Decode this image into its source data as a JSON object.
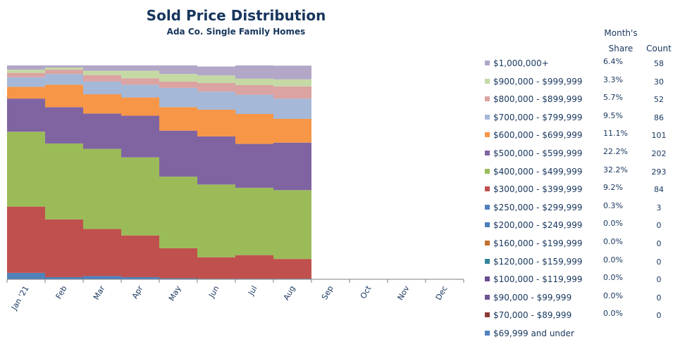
{
  "chart_data": {
    "type": "area",
    "stacked": "percent",
    "step": true,
    "title": "Sold Price Distribution",
    "subtitle": "Ada Co. Single Family Homes",
    "categories": [
      "Jan '21",
      "Feb",
      "Mar",
      "Apr",
      "May",
      "Jun",
      "Jul",
      "Aug",
      "Sep",
      "Oct",
      "Nov",
      "Dec"
    ],
    "ylim": [
      0,
      100
    ],
    "legend_position": "right",
    "series": [
      {
        "name": "$69,999  and under",
        "color": "#4f81bd",
        "values": [
          0,
          0,
          0,
          0,
          0,
          0,
          0,
          0,
          null,
          null,
          null,
          null
        ]
      },
      {
        "name": "$70,000 - $89,999",
        "color": "#8e3b37",
        "values": [
          0,
          0,
          0,
          0,
          0,
          0,
          0,
          0,
          null,
          null,
          null,
          null
        ]
      },
      {
        "name": "$90,000 - $99,999",
        "color": "#6f5395",
        "values": [
          0,
          0,
          0,
          0,
          0,
          0,
          0,
          0,
          null,
          null,
          null,
          null
        ]
      },
      {
        "name": "$100,000 - $119,999",
        "color": "#6a4c93",
        "values": [
          0,
          0,
          0,
          0,
          0,
          0,
          0,
          0,
          null,
          null,
          null,
          null
        ]
      },
      {
        "name": "$120,000 - $159,999",
        "color": "#31859c",
        "values": [
          0,
          0,
          0,
          0,
          0,
          0,
          0,
          0,
          null,
          null,
          null,
          null
        ]
      },
      {
        "name": "$160,000 - $199,999",
        "color": "#c0702b",
        "values": [
          0,
          0,
          0,
          0,
          0,
          0,
          0,
          0,
          null,
          null,
          null,
          null
        ]
      },
      {
        "name": "$200,000 - $249,999",
        "color": "#4a7ebb",
        "values": [
          0,
          0,
          0,
          0,
          0,
          0,
          0,
          0,
          null,
          null,
          null,
          null
        ]
      },
      {
        "name": "$250,000 - $299,999",
        "color": "#4f81bd",
        "values": [
          3,
          1,
          1.5,
          1,
          0.5,
          0.3,
          0.3,
          0.3,
          null,
          null,
          null,
          null
        ]
      },
      {
        "name": "$300,000 - $399,999",
        "color": "#c0504d",
        "values": [
          31,
          27,
          22,
          19.5,
          14,
          10,
          11,
          9.2,
          null,
          null,
          null,
          null
        ]
      },
      {
        "name": "$400,000 - $499,999",
        "color": "#9bbb59",
        "values": [
          35,
          35.5,
          37.5,
          36.5,
          33.5,
          34,
          31.5,
          32.2,
          null,
          null,
          null,
          null
        ]
      },
      {
        "name": "$500,000 - $599,999",
        "color": "#8064a2",
        "values": [
          15.5,
          17,
          16.5,
          19.5,
          21.5,
          22.5,
          20.5,
          22.2,
          null,
          null,
          null,
          null
        ]
      },
      {
        "name": "$600,000 - $699,999",
        "color": "#f79646",
        "values": [
          5.5,
          10.5,
          9,
          8.5,
          11,
          12.5,
          14,
          11.1,
          null,
          null,
          null,
          null
        ]
      },
      {
        "name": "$700,000 - $799,999",
        "color": "#a5b8d7",
        "values": [
          4.5,
          5,
          6,
          6,
          9,
          8.5,
          9,
          9.5,
          null,
          null,
          null,
          null
        ]
      },
      {
        "name": "$800,000 - $899,999",
        "color": "#dba3a2",
        "values": [
          2,
          2,
          3,
          3,
          3,
          4,
          4.5,
          5.7,
          null,
          null,
          null,
          null
        ]
      },
      {
        "name": "$900,000 - $999,999",
        "color": "#c5d9a5",
        "values": [
          1.5,
          1,
          2,
          3.5,
          3.5,
          3.5,
          3,
          3.3,
          null,
          null,
          null,
          null
        ]
      },
      {
        "name": "$1,000,000+",
        "color": "#b2a7c7",
        "values": [
          2,
          1,
          2.5,
          2.5,
          4,
          4.2,
          6.2,
          6.4,
          null,
          null,
          null,
          null
        ]
      }
    ]
  },
  "table": {
    "header_month": "Month's",
    "header_share": "Share",
    "header_count": "Count",
    "rows": [
      {
        "label": "$1,000,000+",
        "color": "#b2a7c7",
        "share": "6.4%",
        "count": "58"
      },
      {
        "label": "$900,000 - $999,999",
        "color": "#c5d9a5",
        "share": "3.3%",
        "count": "30"
      },
      {
        "label": "$800,000 - $899,999",
        "color": "#dba3a2",
        "share": "5.7%",
        "count": "52"
      },
      {
        "label": "$700,000 - $799,999",
        "color": "#a5b8d7",
        "share": "9.5%",
        "count": "86"
      },
      {
        "label": "$600,000 - $699,999",
        "color": "#f79646",
        "share": "11.1%",
        "count": "101"
      },
      {
        "label": "$500,000 - $599,999",
        "color": "#8064a2",
        "share": "22.2%",
        "count": "202"
      },
      {
        "label": "$400,000 - $499,999",
        "color": "#9bbb59",
        "share": "32.2%",
        "count": "293"
      },
      {
        "label": "$300,000 - $399,999",
        "color": "#c0504d",
        "share": "9.2%",
        "count": "84"
      },
      {
        "label": "$250,000 - $299,999",
        "color": "#4f81bd",
        "share": "0.3%",
        "count": "3"
      },
      {
        "label": "$200,000 - $249,999",
        "color": "#4a7ebb",
        "share": "0.0%",
        "count": "0"
      },
      {
        "label": "$160,000 - $199,999",
        "color": "#c0702b",
        "share": "0.0%",
        "count": "0"
      },
      {
        "label": "$120,000 - $159,999",
        "color": "#31859c",
        "share": "0.0%",
        "count": "0"
      },
      {
        "label": "$100,000 - $119,999",
        "color": "#6a4c93",
        "share": "0.0%",
        "count": "0"
      },
      {
        "label": "$90,000 - $99,999",
        "color": "#6f5395",
        "share": "0.0%",
        "count": "0"
      },
      {
        "label": "$70,000 - $89,999",
        "color": "#8e3b37",
        "share": "0.0%",
        "count": "0"
      },
      {
        "label": "$69,999  and under",
        "color": "#4f81bd"
      }
    ]
  }
}
